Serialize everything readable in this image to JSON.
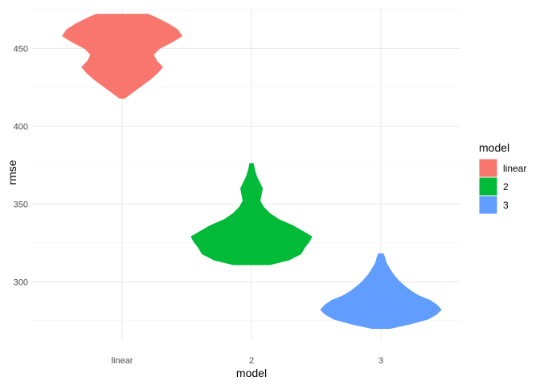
{
  "chart_data": {
    "type": "violin",
    "xlabel": "model",
    "ylabel": "rmse",
    "categories": [
      "linear",
      "2",
      "3"
    ],
    "ylim": [
      262,
      476
    ],
    "yticks": [
      300,
      350,
      400,
      450
    ],
    "y_tick_labels": [
      "300",
      "350",
      "400",
      "450"
    ],
    "grid": true,
    "legend": {
      "title": "model",
      "position": "right",
      "entries": [
        "linear",
        "2",
        "3"
      ]
    },
    "series": [
      {
        "name": "linear",
        "color": "#F8766D",
        "min": 418,
        "max": 472,
        "density": [
          [
            418,
            0.04
          ],
          [
            422,
            0.18
          ],
          [
            426,
            0.32
          ],
          [
            430,
            0.46
          ],
          [
            434,
            0.58
          ],
          [
            438,
            0.67
          ],
          [
            442,
            0.57
          ],
          [
            446,
            0.52
          ],
          [
            450,
            0.62
          ],
          [
            454,
            0.82
          ],
          [
            458,
            0.99
          ],
          [
            462,
            0.92
          ],
          [
            466,
            0.76
          ],
          [
            470,
            0.55
          ],
          [
            472,
            0.43
          ]
        ]
      },
      {
        "name": "2",
        "color": "#00BA38",
        "min": 311,
        "max": 376,
        "density": [
          [
            311,
            0.3
          ],
          [
            314,
            0.62
          ],
          [
            318,
            0.82
          ],
          [
            322,
            0.88
          ],
          [
            326,
            0.96
          ],
          [
            329,
            1.0
          ],
          [
            332,
            0.87
          ],
          [
            336,
            0.69
          ],
          [
            340,
            0.45
          ],
          [
            344,
            0.3
          ],
          [
            348,
            0.2
          ],
          [
            352,
            0.14
          ],
          [
            356,
            0.16
          ],
          [
            360,
            0.18
          ],
          [
            364,
            0.13
          ],
          [
            368,
            0.08
          ],
          [
            372,
            0.05
          ],
          [
            376,
            0.03
          ]
        ]
      },
      {
        "name": "3",
        "color": "#619CFF",
        "min": 270,
        "max": 318,
        "density": [
          [
            270,
            0.15
          ],
          [
            273,
            0.5
          ],
          [
            276,
            0.78
          ],
          [
            279,
            0.92
          ],
          [
            282,
            1.0
          ],
          [
            285,
            0.93
          ],
          [
            288,
            0.82
          ],
          [
            291,
            0.63
          ],
          [
            294,
            0.5
          ],
          [
            297,
            0.4
          ],
          [
            300,
            0.31
          ],
          [
            304,
            0.22
          ],
          [
            308,
            0.15
          ],
          [
            312,
            0.09
          ],
          [
            316,
            0.06
          ],
          [
            318,
            0.04
          ]
        ]
      }
    ]
  }
}
